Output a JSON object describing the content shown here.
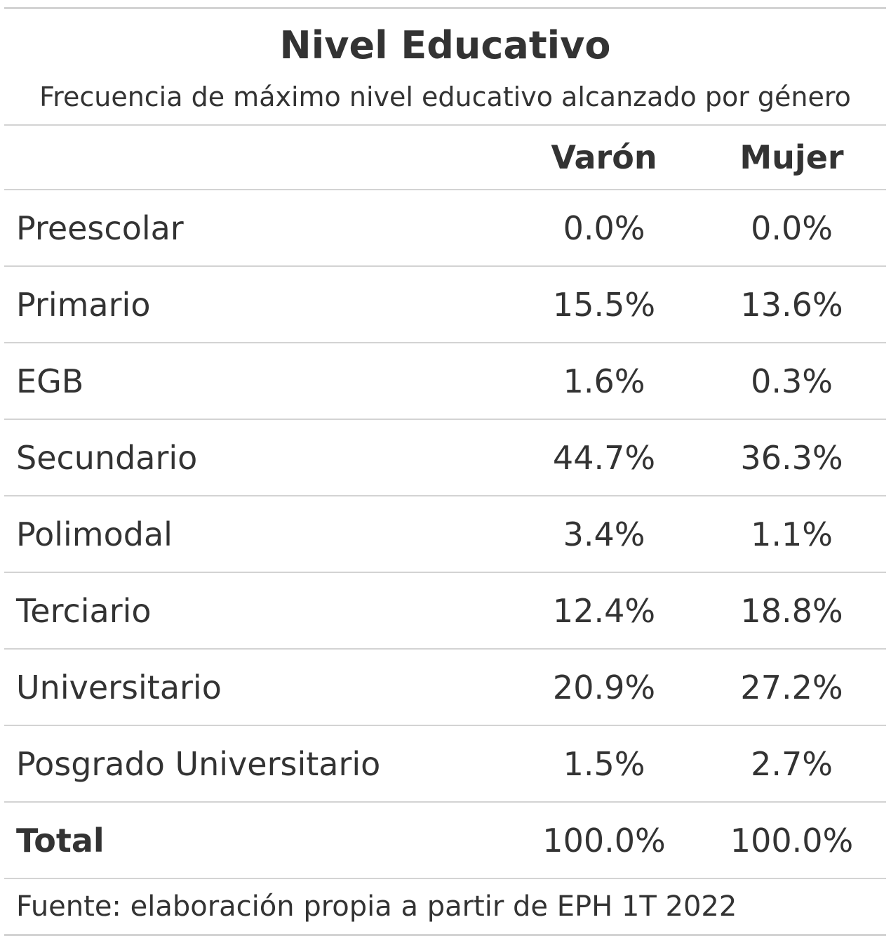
{
  "table": {
    "title": "Nivel Educativo",
    "subtitle": "Frecuencia de máximo nivel educativo alcanzado por género",
    "columns": [
      "",
      "Varón",
      "Mujer"
    ],
    "rows": [
      {
        "label": "Preescolar",
        "varon": "0.0%",
        "mujer": "0.0%"
      },
      {
        "label": "Primario",
        "varon": "15.5%",
        "mujer": "13.6%"
      },
      {
        "label": "EGB",
        "varon": "1.6%",
        "mujer": "0.3%"
      },
      {
        "label": "Secundario",
        "varon": "44.7%",
        "mujer": "36.3%"
      },
      {
        "label": "Polimodal",
        "varon": "3.4%",
        "mujer": "1.1%"
      },
      {
        "label": "Terciario",
        "varon": "12.4%",
        "mujer": "18.8%"
      },
      {
        "label": "Universitario",
        "varon": "20.9%",
        "mujer": "27.2%"
      },
      {
        "label": "Posgrado Universitario",
        "varon": "1.5%",
        "mujer": "2.7%"
      }
    ],
    "total": {
      "label": "Total",
      "varon": "100.0%",
      "mujer": "100.0%"
    },
    "source": "Fuente: elaboración propia a partir de EPH 1T 2022"
  }
}
